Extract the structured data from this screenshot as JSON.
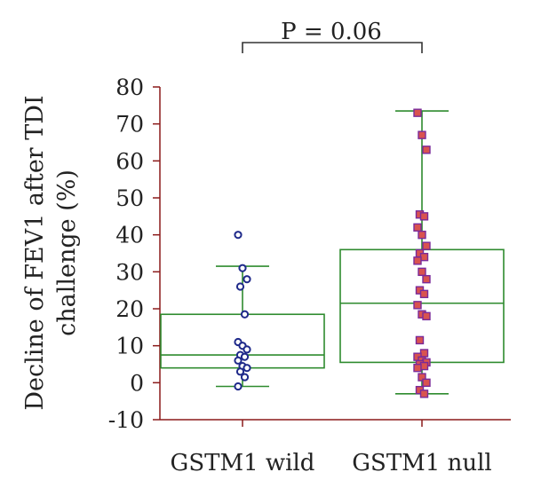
{
  "chart_data": {
    "type": "box",
    "annotation": "P = 0.06",
    "ylabel_lines": [
      "Decline of FEV1 after TDI",
      "challenge (%)"
    ],
    "ylim": [
      -10,
      80
    ],
    "yticks": [
      -10,
      0,
      10,
      20,
      30,
      40,
      50,
      60,
      70,
      80
    ],
    "ytick_labels": [
      "-10",
      "0",
      "10",
      "20",
      "30",
      "40",
      "50",
      "60",
      "70",
      "80"
    ],
    "categories": [
      "GSTM1 wild",
      "GSTM1 null"
    ],
    "series": [
      {
        "whisker_low": -1,
        "q1": 4,
        "median": 7.5,
        "q3": 18.5,
        "whisker_high": 31.5,
        "marker": "circle",
        "points": [
          40,
          31,
          28,
          26,
          18.5,
          11,
          10,
          9,
          7.5,
          7,
          6,
          4.5,
          4,
          3,
          1.5,
          -1
        ]
      },
      {
        "whisker_low": -3,
        "q1": 5.5,
        "median": 21.5,
        "q3": 36,
        "whisker_high": 73.5,
        "marker": "square",
        "points": [
          73,
          67,
          63,
          45.5,
          45,
          42,
          40,
          37,
          35,
          34,
          33,
          30,
          28,
          25,
          24,
          21,
          18.5,
          18,
          11.5,
          8,
          7,
          6,
          5.5,
          5,
          4.5,
          4,
          1.5,
          0,
          -2,
          -3
        ]
      }
    ],
    "colors": {
      "axis": "#8b1a1a",
      "box": "#2e8b2e",
      "circle_stroke": "#1f2a8a",
      "square_fill": "#d9534f",
      "square_stroke": "#7a2a9a",
      "bracket": "#333333"
    }
  }
}
